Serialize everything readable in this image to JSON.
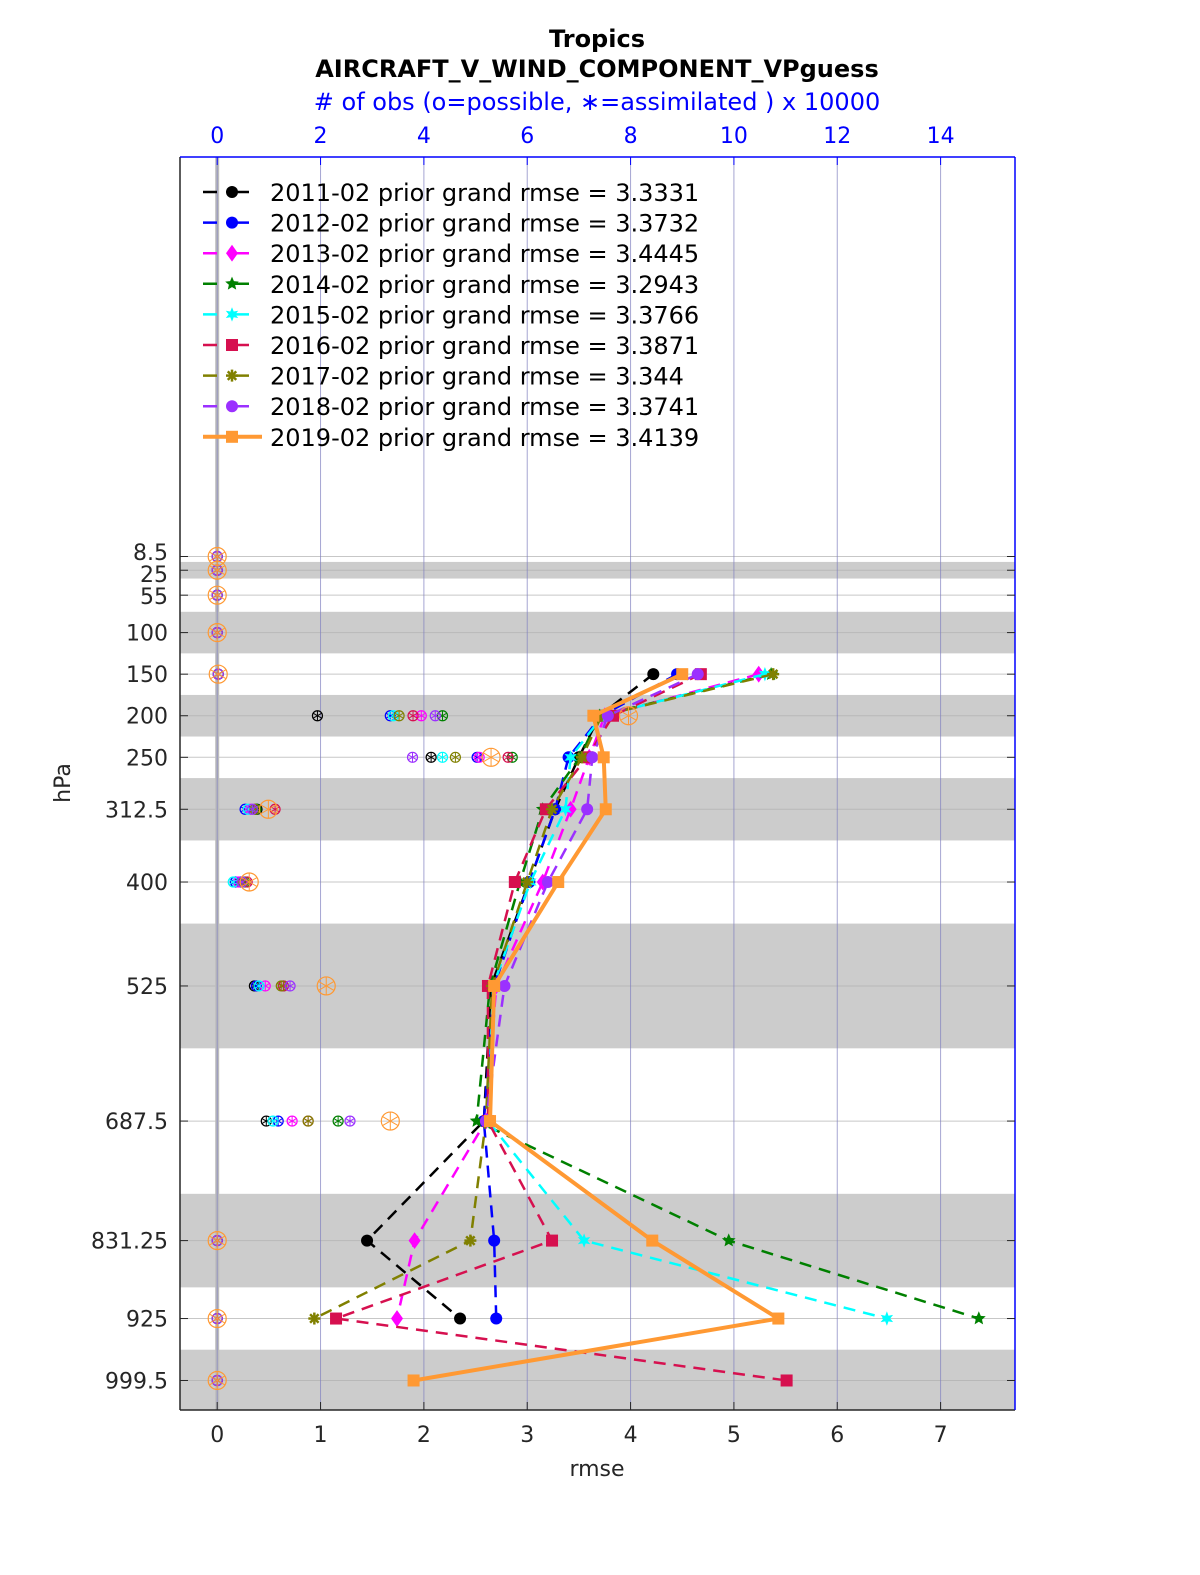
{
  "chart_data": {
    "type": "line",
    "title": "Tropics",
    "subtitle": "AIRCRAFT_V_WIND_COMPONENT_VPguess",
    "top_axis_label": "# of obs (o=possible, ∗=assimilated ) x 10000",
    "xlabel": "rmse",
    "ylabel": "hPa",
    "xlim": [
      -0.36,
      7.72
    ],
    "top_xlim": [
      -0.72,
      15.44
    ],
    "ylim": [
      -472,
      1035
    ],
    "y_reversed": true,
    "x_ticks": [
      "0",
      "1",
      "2",
      "3",
      "4",
      "5",
      "6",
      "7"
    ],
    "top_ticks": [
      "0",
      "2",
      "4",
      "6",
      "8",
      "10",
      "12",
      "14"
    ],
    "levels": [
      8.5,
      25,
      55,
      100,
      150,
      200,
      250,
      312.5,
      400,
      525,
      687.5,
      831.25,
      925,
      999.5
    ],
    "level_labels": [
      "8.5",
      "25",
      "55",
      "100",
      "150",
      "200",
      "250",
      "312.5",
      "400",
      "525",
      "687.5",
      "831.25",
      "925",
      "999.5"
    ],
    "shaded_layers": [
      [
        15,
        35
      ],
      [
        75,
        125
      ],
      [
        175,
        225
      ],
      [
        275,
        350
      ],
      [
        450,
        600
      ],
      [
        775,
        887.5
      ],
      [
        962.5,
        1037
      ]
    ],
    "grid": true,
    "legend_placement": "top-left",
    "series": [
      {
        "name": "2011-02 prior grand rmse = 3.3331",
        "color": "#000000",
        "marker": "circle",
        "dash": true,
        "rmse": [
          null,
          null,
          null,
          null,
          4.22,
          3.7,
          3.5,
          3.27,
          3.02,
          2.65,
          2.58,
          1.45,
          2.35,
          null
        ],
        "obs": [
          0,
          0,
          0,
          0,
          0.02,
          1.94,
          4.14,
          0.77,
          0.45,
          0.72,
          0.95,
          0,
          0,
          0
        ]
      },
      {
        "name": "2012-02 prior grand rmse = 3.3732",
        "color": "#0000ff",
        "marker": "circle",
        "dash": true,
        "rmse": [
          null,
          null,
          null,
          null,
          4.45,
          3.72,
          3.4,
          3.27,
          3.02,
          2.68,
          2.58,
          2.68,
          2.7,
          null
        ],
        "obs": [
          0,
          0,
          0,
          0,
          0.02,
          3.35,
          5.03,
          0.54,
          0.35,
          0.76,
          1.18,
          0,
          0,
          0
        ]
      },
      {
        "name": "2013-02 prior grand rmse = 3.4445",
        "color": "#ff00ff",
        "marker": "diamond",
        "dash": true,
        "rmse": [
          null,
          null,
          null,
          null,
          5.24,
          3.75,
          3.6,
          3.42,
          3.15,
          2.7,
          2.6,
          1.91,
          1.74,
          null
        ],
        "obs": [
          0,
          0,
          0,
          0,
          0.02,
          3.95,
          5.07,
          0.64,
          0.41,
          0.93,
          1.45,
          0,
          0,
          0
        ]
      },
      {
        "name": "2014-02 prior grand rmse = 3.2943",
        "color": "#008000",
        "marker": "star",
        "dash": true,
        "rmse": [
          null,
          null,
          null,
          null,
          5.36,
          3.7,
          3.51,
          3.15,
          2.93,
          2.64,
          2.51,
          4.95,
          7.37,
          null
        ],
        "obs": [
          0,
          0,
          0,
          0,
          0.02,
          4.36,
          5.71,
          0.75,
          0.54,
          1.28,
          2.34,
          0,
          0,
          0
        ]
      },
      {
        "name": "2015-02 prior grand rmse = 3.3766",
        "color": "#00ffff",
        "marker": "hexagram",
        "dash": true,
        "rmse": [
          null,
          null,
          null,
          null,
          5.3,
          3.73,
          3.42,
          3.37,
          3.03,
          2.67,
          2.62,
          3.55,
          6.48,
          null
        ],
        "obs": [
          0,
          0,
          0,
          0,
          0.02,
          3.41,
          4.36,
          0.6,
          0.31,
          0.81,
          1.08,
          0,
          0,
          0
        ]
      },
      {
        "name": "2016-02 prior grand rmse = 3.3871",
        "color": "#d6104f",
        "marker": "square",
        "dash": true,
        "rmse": [
          null,
          null,
          null,
          null,
          4.68,
          3.83,
          3.58,
          3.18,
          2.88,
          2.62,
          2.62,
          3.24,
          1.15,
          5.51
        ],
        "obs": [
          0,
          0,
          0,
          0,
          0.02,
          3.79,
          5.63,
          1.12,
          0.58,
          1.28,
          1.76,
          0,
          0,
          0
        ]
      },
      {
        "name": "2017-02 prior grand rmse = 3.344",
        "color": "#808000",
        "marker": "asterisk",
        "dash": true,
        "rmse": [
          null,
          null,
          null,
          null,
          5.38,
          3.72,
          3.53,
          3.24,
          3.0,
          2.66,
          2.6,
          2.45,
          0.94,
          null
        ],
        "obs": [
          0,
          0,
          0,
          0,
          0.02,
          3.52,
          4.61,
          0.73,
          0.5,
          1.24,
          1.76,
          0,
          0,
          0
        ]
      },
      {
        "name": "2018-02 prior grand rmse = 3.3741",
        "color": "#9b30ff",
        "marker": "circle",
        "dash": true,
        "rmse": [
          null,
          null,
          null,
          null,
          4.65,
          3.78,
          3.63,
          3.58,
          3.2,
          2.78,
          2.6,
          null,
          null,
          null
        ],
        "obs": [
          0,
          0,
          0,
          0,
          0.02,
          4.22,
          3.78,
          0.68,
          0.48,
          1.41,
          2.57,
          0,
          0,
          0
        ]
      },
      {
        "name": "2019-02 prior grand rmse = 3.4139",
        "color": "#ff9933",
        "marker": "square",
        "dash": false,
        "rmse": [
          null,
          null,
          null,
          null,
          4.5,
          3.64,
          3.74,
          3.76,
          3.3,
          2.68,
          2.64,
          4.21,
          5.43,
          1.9
        ],
        "obs": [
          0,
          0,
          0,
          0,
          0.02,
          7.96,
          5.3,
          0.99,
          0.62,
          2.11,
          3.35,
          0,
          0,
          0
        ]
      }
    ]
  }
}
